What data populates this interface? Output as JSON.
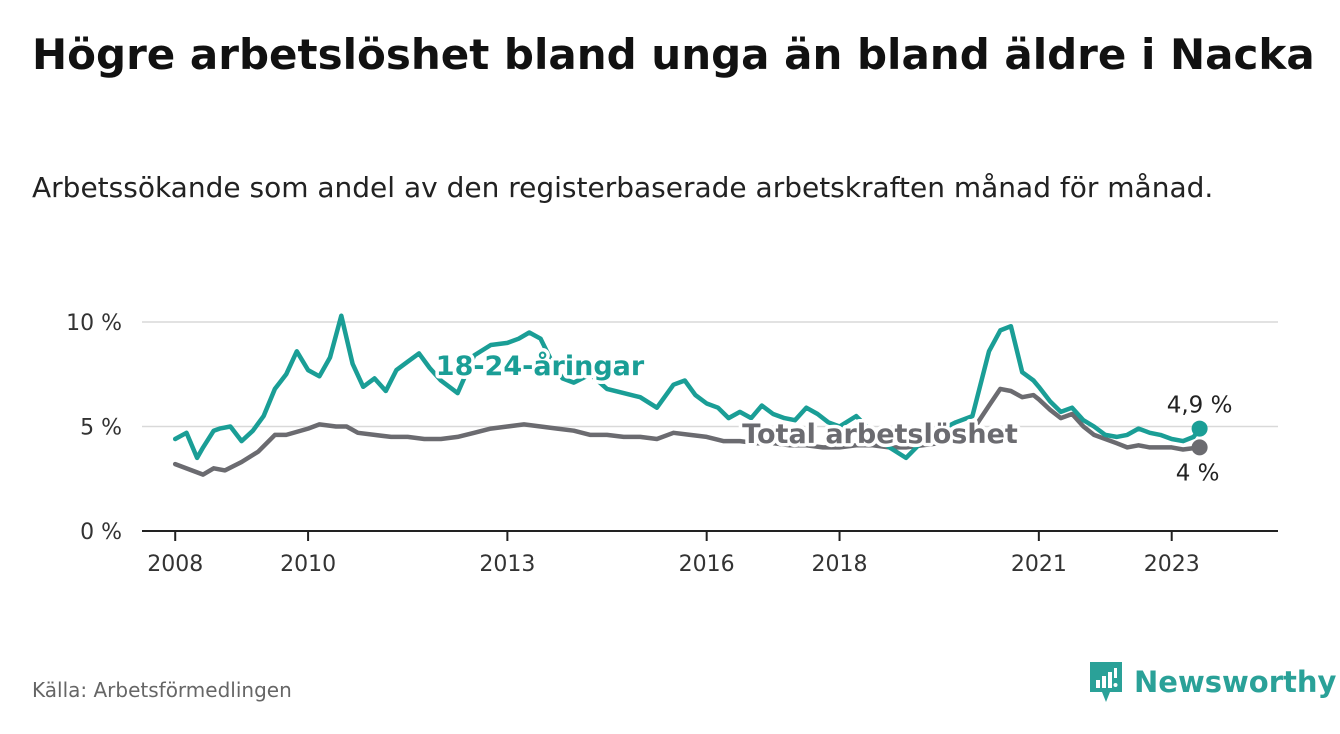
{
  "title": "Högre arbetslöshet bland unga än bland äldre i Nacka",
  "subtitle": "Arbetssökande som andel av den registerbaserade arbetskraften månad för månad.",
  "source": "Källa: Arbetsförmedlingen",
  "brand": {
    "name": "Newsworthy",
    "icon": "newsworthy-logo-icon",
    "color": "#2aa198"
  },
  "chart_data": {
    "type": "line",
    "title": "Högre arbetslöshet bland unga än bland äldre i Nacka",
    "xlabel": "",
    "ylabel": "",
    "xlim": [
      2007.5,
      2024.6
    ],
    "ylim": [
      0,
      10
    ],
    "grid": true,
    "x_ticks": [
      2008,
      2010,
      2013,
      2016,
      2018,
      2021,
      2023
    ],
    "x_tick_labels": [
      "2008",
      "2010",
      "2013",
      "2016",
      "2018",
      "2021",
      "2023"
    ],
    "y_ticks": [
      0,
      5,
      10
    ],
    "y_tick_labels": [
      "0 %",
      "5 %",
      "10 %"
    ],
    "series": [
      {
        "name": "18-24-åringar",
        "label": "18-24-åringar",
        "color": "#1a9e96",
        "end_label": "4,9 %",
        "x": [
          2008.0,
          2008.17,
          2008.33,
          2008.42,
          2008.58,
          2008.67,
          2008.83,
          2009.0,
          2009.17,
          2009.33,
          2009.5,
          2009.67,
          2009.83,
          2010.0,
          2010.17,
          2010.33,
          2010.5,
          2010.67,
          2010.83,
          2011.0,
          2011.17,
          2011.33,
          2011.5,
          2011.67,
          2011.83,
          2012.0,
          2012.25,
          2012.5,
          2012.75,
          2013.0,
          2013.17,
          2013.33,
          2013.5,
          2013.67,
          2013.83,
          2014.0,
          2014.25,
          2014.5,
          2014.75,
          2015.0,
          2015.25,
          2015.5,
          2015.67,
          2015.83,
          2016.0,
          2016.17,
          2016.33,
          2016.5,
          2016.67,
          2016.83,
          2017.0,
          2017.17,
          2017.33,
          2017.5,
          2017.67,
          2017.83,
          2018.0,
          2018.25,
          2018.5,
          2018.75,
          2019.0,
          2019.25,
          2019.5,
          2019.75,
          2020.0,
          2020.25,
          2020.42,
          2020.58,
          2020.75,
          2020.92,
          2021.0,
          2021.17,
          2021.33,
          2021.5,
          2021.67,
          2021.83,
          2022.0,
          2022.17,
          2022.33,
          2022.5,
          2022.67,
          2022.83,
          2023.0,
          2023.17,
          2023.33,
          2023.42
        ],
        "y": [
          4.4,
          4.7,
          3.5,
          4.0,
          4.8,
          4.9,
          5.0,
          4.3,
          4.8,
          5.5,
          6.8,
          7.5,
          8.6,
          7.7,
          7.4,
          8.3,
          10.3,
          8.0,
          6.9,
          7.3,
          6.7,
          7.7,
          8.1,
          8.5,
          7.8,
          7.2,
          6.6,
          8.4,
          8.9,
          9.0,
          9.2,
          9.5,
          9.2,
          8.1,
          7.3,
          7.1,
          7.5,
          6.8,
          6.6,
          6.4,
          5.9,
          7.0,
          7.2,
          6.5,
          6.1,
          5.9,
          5.4,
          5.7,
          5.4,
          6.0,
          5.6,
          5.4,
          5.3,
          5.9,
          5.6,
          5.2,
          5.0,
          5.5,
          4.7,
          4.0,
          3.5,
          4.3,
          4.8,
          5.2,
          5.5,
          8.6,
          9.6,
          9.8,
          7.6,
          7.2,
          6.9,
          6.2,
          5.7,
          5.9,
          5.3,
          5.0,
          4.6,
          4.5,
          4.6,
          4.9,
          4.7,
          4.6,
          4.4,
          4.3,
          4.5,
          4.9
        ]
      },
      {
        "name": "Total arbetslöshet",
        "label": "Total arbetslöshet",
        "color": "#6b6b70",
        "end_label": "4 %",
        "x": [
          2008.0,
          2008.25,
          2008.42,
          2008.58,
          2008.75,
          2009.0,
          2009.25,
          2009.5,
          2009.67,
          2010.0,
          2010.17,
          2010.42,
          2010.58,
          2010.75,
          2011.0,
          2011.25,
          2011.5,
          2011.75,
          2012.0,
          2012.25,
          2012.5,
          2012.75,
          2013.0,
          2013.25,
          2013.5,
          2013.75,
          2014.0,
          2014.25,
          2014.5,
          2014.75,
          2015.0,
          2015.25,
          2015.5,
          2015.75,
          2016.0,
          2016.25,
          2016.5,
          2016.75,
          2017.0,
          2017.25,
          2017.5,
          2017.75,
          2018.0,
          2018.25,
          2018.5,
          2018.75,
          2019.0,
          2019.25,
          2019.5,
          2019.75,
          2020.0,
          2020.25,
          2020.42,
          2020.58,
          2020.75,
          2020.92,
          2021.0,
          2021.17,
          2021.33,
          2021.5,
          2021.67,
          2021.83,
          2022.0,
          2022.17,
          2022.33,
          2022.5,
          2022.67,
          2022.83,
          2023.0,
          2023.17,
          2023.42
        ],
        "y": [
          3.2,
          2.9,
          2.7,
          3.0,
          2.9,
          3.3,
          3.8,
          4.6,
          4.6,
          4.9,
          5.1,
          5.0,
          5.0,
          4.7,
          4.6,
          4.5,
          4.5,
          4.4,
          4.4,
          4.5,
          4.7,
          4.9,
          5.0,
          5.1,
          5.0,
          4.9,
          4.8,
          4.6,
          4.6,
          4.5,
          4.5,
          4.4,
          4.7,
          4.6,
          4.5,
          4.3,
          4.3,
          4.2,
          4.2,
          4.1,
          4.1,
          4.0,
          4.0,
          4.1,
          4.1,
          4.0,
          4.0,
          4.1,
          4.2,
          4.3,
          4.8,
          6.0,
          6.8,
          6.7,
          6.4,
          6.5,
          6.3,
          5.8,
          5.4,
          5.6,
          5.0,
          4.6,
          4.4,
          4.2,
          4.0,
          4.1,
          4.0,
          4.0,
          4.0,
          3.9,
          4.0
        ]
      }
    ]
  }
}
